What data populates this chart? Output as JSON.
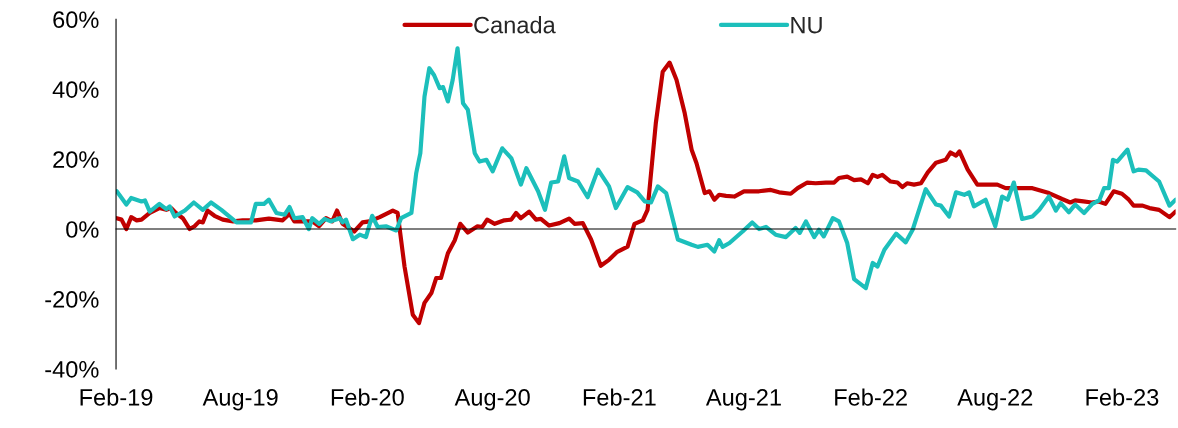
{
  "chart_data": {
    "type": "line",
    "xlim": [
      "2019-02-01",
      "2023-04-20"
    ],
    "xticks": [
      {
        "value": "2019-02-01",
        "label": "Feb-19"
      },
      {
        "value": "2019-08-01",
        "label": "Aug-19"
      },
      {
        "value": "2020-02-01",
        "label": "Feb-20"
      },
      {
        "value": "2020-08-01",
        "label": "Aug-20"
      },
      {
        "value": "2021-02-01",
        "label": "Feb-21"
      },
      {
        "value": "2021-08-01",
        "label": "Aug-21"
      },
      {
        "value": "2022-02-01",
        "label": "Feb-22"
      },
      {
        "value": "2022-08-01",
        "label": "Aug-22"
      },
      {
        "value": "2023-02-01",
        "label": "Feb-23"
      }
    ],
    "ylim": [
      -40,
      60
    ],
    "yticks": [
      {
        "value": -40,
        "label": "-40%"
      },
      {
        "value": -20,
        "label": "-20%"
      },
      {
        "value": 0,
        "label": "0%"
      },
      {
        "value": 20,
        "label": "20%"
      },
      {
        "value": 40,
        "label": "40%"
      },
      {
        "value": 60,
        "label": "60%"
      }
    ],
    "legend": "top",
    "marker": "none",
    "line_style": "solid",
    "series": [
      {
        "name": "Canada",
        "color": "#c00000",
        "x": [
          "2019-02-02",
          "2019-02-09",
          "2019-02-16",
          "2019-02-23",
          "2019-03-03",
          "2019-03-10",
          "2019-03-22",
          "2019-04-05",
          "2019-04-15",
          "2019-04-22",
          "2019-04-29",
          "2019-05-09",
          "2019-05-19",
          "2019-05-26",
          "2019-06-02",
          "2019-06-07",
          "2019-06-14",
          "2019-06-24",
          "2019-07-06",
          "2019-07-21",
          "2019-08-04",
          "2019-08-23",
          "2019-09-11",
          "2019-10-01",
          "2019-10-11",
          "2019-10-18",
          "2019-10-30",
          "2019-11-13",
          "2019-11-23",
          "2019-12-03",
          "2019-12-12",
          "2019-12-19",
          "2019-12-27",
          "2020-01-13",
          "2020-01-25",
          "2020-02-04",
          "2020-02-19",
          "2020-03-09",
          "2020-03-16",
          "2020-03-26",
          "2020-04-07",
          "2020-04-16",
          "2020-04-24",
          "2020-05-04",
          "2020-05-11",
          "2020-05-18",
          "2020-05-28",
          "2020-06-07",
          "2020-06-15",
          "2020-06-26",
          "2020-07-10",
          "2020-07-17",
          "2020-07-24",
          "2020-08-04",
          "2020-08-18",
          "2020-08-28",
          "2020-09-04",
          "2020-09-11",
          "2020-09-23",
          "2020-10-03",
          "2020-10-10",
          "2020-10-22",
          "2020-11-06",
          "2020-11-20",
          "2020-11-28",
          "2020-12-10",
          "2020-12-22",
          "2021-01-05",
          "2021-01-17",
          "2021-01-29",
          "2021-02-13",
          "2021-02-23",
          "2021-03-07",
          "2021-03-14",
          "2021-03-26",
          "2021-04-05",
          "2021-04-15",
          "2021-04-25",
          "2021-05-07",
          "2021-05-17",
          "2021-05-24",
          "2021-06-05",
          "2021-06-12",
          "2021-06-19",
          "2021-06-26",
          "2021-07-06",
          "2021-07-18",
          "2021-08-01",
          "2021-08-23",
          "2021-09-09",
          "2021-09-21",
          "2021-10-08",
          "2021-10-18",
          "2021-11-01",
          "2021-11-13",
          "2021-11-28",
          "2021-12-10",
          "2021-12-17",
          "2021-12-29",
          "2022-01-08",
          "2022-01-18",
          "2022-01-28",
          "2022-02-04",
          "2022-02-11",
          "2022-02-18",
          "2022-03-02",
          "2022-03-12",
          "2022-03-19",
          "2022-03-26",
          "2022-04-05",
          "2022-04-15",
          "2022-04-25",
          "2022-05-07",
          "2022-05-21",
          "2022-05-28",
          "2022-06-05",
          "2022-06-10",
          "2022-06-22",
          "2022-07-06",
          "2022-07-18",
          "2022-08-04",
          "2022-08-16",
          "2022-09-05",
          "2022-09-24",
          "2022-10-18",
          "2022-11-06",
          "2022-11-18",
          "2022-11-25",
          "2022-12-07",
          "2022-12-19",
          "2022-12-29",
          "2023-01-08",
          "2023-01-20",
          "2023-02-01",
          "2023-02-11",
          "2023-02-18",
          "2023-03-03",
          "2023-03-13",
          "2023-03-27",
          "2023-04-11",
          "2023-04-20"
        ],
        "values": [
          3.1,
          2.7,
          0,
          3.4,
          2.5,
          2.7,
          4.6,
          6,
          5.5,
          6,
          4.6,
          3.1,
          0,
          0.8,
          2.2,
          1.9,
          5.3,
          3.8,
          2.7,
          2.2,
          2.5,
          2.5,
          3,
          2.5,
          4.4,
          2.2,
          2.2,
          2.2,
          0.8,
          3.1,
          2.2,
          5.3,
          1.5,
          -0.7,
          1.9,
          2.2,
          3.4,
          5.3,
          4.6,
          -10.7,
          -24.5,
          -26.9,
          -21.1,
          -18.3,
          -14,
          -14,
          -6.9,
          -3.2,
          1.5,
          -1,
          0.8,
          0.6,
          2.7,
          1.5,
          2.5,
          2.7,
          4.6,
          3.1,
          5,
          2.7,
          2.9,
          1,
          1.7,
          3,
          1.5,
          1.7,
          -3,
          -10.5,
          -8.8,
          -6.5,
          -5,
          1.5,
          2.5,
          5.5,
          30.3,
          45,
          47.6,
          42.7,
          33.1,
          22.7,
          18.9,
          10.3,
          10.8,
          8.4,
          9.8,
          9.5,
          9.3,
          10.8,
          10.8,
          11.2,
          10.5,
          10.1,
          11.7,
          13.3,
          13.1,
          13.3,
          13.3,
          14.6,
          15,
          14,
          14.2,
          13.1,
          15.5,
          14.9,
          15.5,
          13.6,
          13.3,
          12,
          13.1,
          12.7,
          13.1,
          16.2,
          19,
          19.8,
          21.9,
          21,
          22.2,
          17,
          12.7,
          12.7,
          12.7,
          11.7,
          11.7,
          11.7,
          10.3,
          8.6,
          7.6,
          8.2,
          7.9,
          7.6,
          7.9,
          7.2,
          10.8,
          10.1,
          8.4,
          6.7,
          6.7,
          6,
          5.5,
          3.4,
          5
        ]
      },
      {
        "name": "NU",
        "color": "#1cbfbb",
        "x": [
          "2019-02-02",
          "2019-02-16",
          "2019-02-23",
          "2019-03-10",
          "2019-03-15",
          "2019-03-22",
          "2019-04-05",
          "2019-04-15",
          "2019-04-20",
          "2019-04-27",
          "2019-05-12",
          "2019-05-25",
          "2019-06-07",
          "2019-06-19",
          "2019-07-04",
          "2019-07-26",
          "2019-08-16",
          "2019-08-23",
          "2019-09-04",
          "2019-09-11",
          "2019-09-22",
          "2019-10-04",
          "2019-10-11",
          "2019-10-18",
          "2019-10-30",
          "2019-11-08",
          "2019-11-13",
          "2019-11-23",
          "2019-12-01",
          "2019-12-10",
          "2019-12-23",
          "2019-12-27",
          "2020-01-01",
          "2020-01-11",
          "2020-01-21",
          "2020-01-30",
          "2020-02-08",
          "2020-02-16",
          "2020-02-28",
          "2020-03-14",
          "2020-03-21",
          "2020-04-05",
          "2020-04-12",
          "2020-04-18",
          "2020-04-24",
          "2020-05-01",
          "2020-05-08",
          "2020-05-16",
          "2020-05-21",
          "2020-05-28",
          "2020-06-04",
          "2020-06-11",
          "2020-06-19",
          "2020-06-26",
          "2020-07-06",
          "2020-07-13",
          "2020-07-23",
          "2020-08-01",
          "2020-08-15",
          "2020-08-28",
          "2020-09-11",
          "2020-09-19",
          "2020-10-06",
          "2020-10-16",
          "2020-10-25",
          "2020-11-04",
          "2020-11-13",
          "2020-11-20",
          "2020-12-03",
          "2020-12-17",
          "2021-01-01",
          "2021-01-17",
          "2021-01-27",
          "2021-02-13",
          "2021-02-27",
          "2021-03-10",
          "2021-03-19",
          "2021-03-29",
          "2021-04-10",
          "2021-04-27",
          "2021-05-17",
          "2021-05-26",
          "2021-06-09",
          "2021-06-19",
          "2021-06-26",
          "2021-07-01",
          "2021-07-11",
          "2021-07-30",
          "2021-08-13",
          "2021-08-23",
          "2021-09-02",
          "2021-09-16",
          "2021-10-01",
          "2021-10-15",
          "2021-10-21",
          "2021-10-30",
          "2021-11-11",
          "2021-11-18",
          "2021-11-25",
          "2021-12-08",
          "2021-12-17",
          "2021-12-29",
          "2022-01-08",
          "2022-01-25",
          "2022-02-04",
          "2022-02-11",
          "2022-02-21",
          "2022-03-10",
          "2022-03-24",
          "2022-04-03",
          "2022-04-22",
          "2022-05-07",
          "2022-05-14",
          "2022-05-26",
          "2022-06-05",
          "2022-06-17",
          "2022-06-24",
          "2022-07-01",
          "2022-07-18",
          "2022-08-01",
          "2022-08-11",
          "2022-08-19",
          "2022-08-28",
          "2022-09-09",
          "2022-09-24",
          "2022-10-04",
          "2022-10-18",
          "2022-10-28",
          "2022-11-04",
          "2022-11-16",
          "2022-11-25",
          "2022-12-08",
          "2022-12-20",
          "2022-12-30",
          "2023-01-06",
          "2023-01-13",
          "2023-01-19",
          "2023-01-25",
          "2023-02-09",
          "2023-02-18",
          "2023-02-25",
          "2023-03-08",
          "2023-03-18",
          "2023-03-27",
          "2023-04-11",
          "2023-04-20"
        ],
        "values": [
          10.8,
          7,
          8.9,
          7.9,
          8.2,
          5,
          7.2,
          5.7,
          6.5,
          3.6,
          5.3,
          7.6,
          5.5,
          7.6,
          5.5,
          1.9,
          1.9,
          7.2,
          7.2,
          8.4,
          4.6,
          4.1,
          6.3,
          3.1,
          3.4,
          0,
          3.1,
          1.5,
          2.9,
          2.2,
          3.1,
          1.9,
          2.7,
          -2.9,
          -1.6,
          -2.3,
          3.8,
          0.6,
          0.8,
          -0.4,
          3.1,
          4.6,
          16,
          21.7,
          37.9,
          46,
          44,
          40.3,
          40.6,
          36.5,
          42.7,
          51.7,
          36,
          34.1,
          21.7,
          19.3,
          19.8,
          16.5,
          23.1,
          20.3,
          12.7,
          17.4,
          10.8,
          5.5,
          13.3,
          13.6,
          20.8,
          14.6,
          13.6,
          9.1,
          17,
          12.2,
          6,
          12,
          10.5,
          7.9,
          7.6,
          12.2,
          10.3,
          -3,
          -4.5,
          -5.1,
          -4.5,
          -6.4,
          -3.2,
          -5.1,
          -4,
          -0.7,
          1.9,
          0,
          0.6,
          -1.6,
          -2.3,
          0.3,
          -1.1,
          2.2,
          -2.3,
          -0.2,
          -2.1,
          3.1,
          2.2,
          -4,
          -14.3,
          -16.9,
          -9.7,
          -10.7,
          -5.9,
          -1.3,
          -3.8,
          -0.2,
          11.4,
          7,
          6.7,
          3.6,
          10.5,
          9.8,
          10.5,
          6.5,
          8.4,
          0.8,
          9.3,
          8.4,
          13.3,
          2.9,
          3.6,
          5.5,
          9.3,
          5.3,
          7.4,
          4.8,
          7,
          4.6,
          7.2,
          8.2,
          11.7,
          11.7,
          19.8,
          19.3,
          22.7,
          16.5,
          17,
          16.8,
          15.1,
          13.6,
          6.7,
          8.4
        ]
      }
    ]
  }
}
